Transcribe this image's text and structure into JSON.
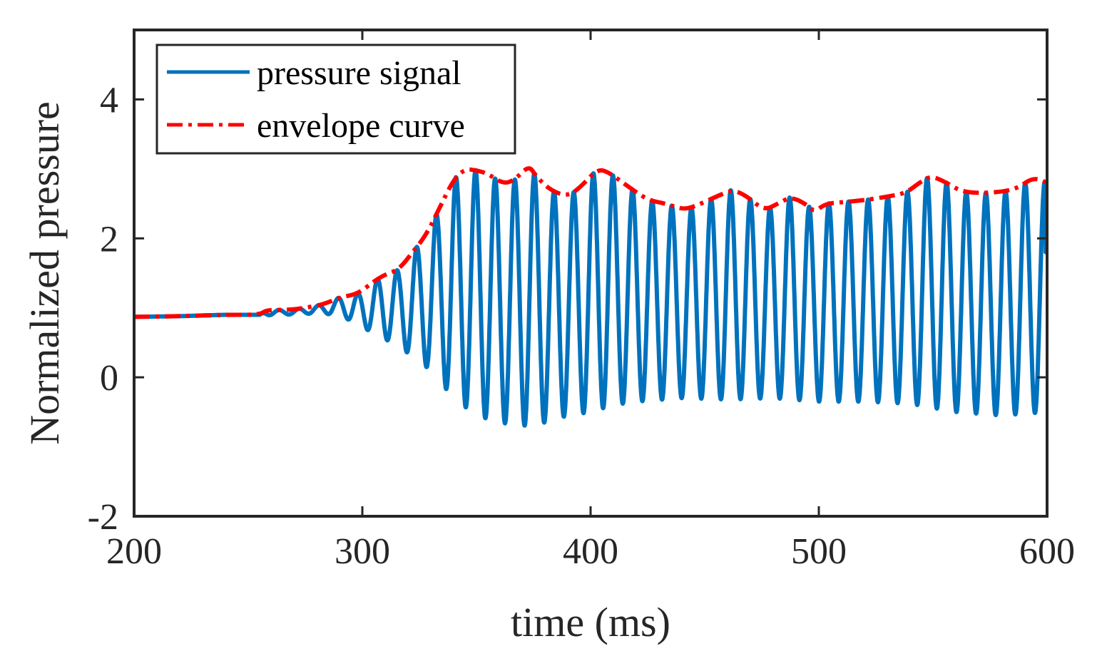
{
  "chart_data": {
    "type": "line",
    "title": "",
    "xlabel": "time (ms)",
    "ylabel": "Normalized pressure",
    "xlim": [
      200,
      600
    ],
    "ylim": [
      -2,
      5
    ],
    "xticks": [
      200,
      300,
      400,
      500,
      600
    ],
    "xtick_labels": [
      "200",
      "300",
      "400",
      "500",
      "600"
    ],
    "yticks": [
      -2,
      0,
      2,
      4
    ],
    "ytick_labels": [
      "-2",
      "0",
      "2",
      "4"
    ],
    "grid": false,
    "legend_position": "top-left",
    "colors": {
      "signal": "#0072BD",
      "envelope": "#FF0000",
      "axes": "#262626"
    },
    "series": [
      {
        "name": "pressure signal",
        "style": "solid",
        "baseline": [
          [
            200,
            0.87
          ],
          [
            255,
            0.89
          ],
          [
            265,
            0.9
          ],
          [
            280,
            0.92
          ],
          [
            290,
            0.9
          ],
          [
            300,
            0.72
          ],
          [
            310,
            0.55
          ],
          [
            320,
            0.35
          ],
          [
            330,
            0.1
          ],
          [
            340,
            -0.3
          ],
          [
            350,
            -0.55
          ],
          [
            360,
            -0.65
          ],
          [
            370,
            -0.7
          ],
          [
            380,
            -0.65
          ],
          [
            390,
            -0.55
          ],
          [
            400,
            -0.5
          ],
          [
            410,
            -0.4
          ],
          [
            420,
            -0.35
          ],
          [
            440,
            -0.3
          ],
          [
            460,
            -0.32
          ],
          [
            480,
            -0.3
          ],
          [
            500,
            -0.35
          ],
          [
            520,
            -0.35
          ],
          [
            540,
            -0.38
          ],
          [
            560,
            -0.5
          ],
          [
            580,
            -0.55
          ],
          [
            600,
            -0.5
          ]
        ],
        "period_ms": 8.6,
        "start_ms": 255,
        "end_value": 1.8
      },
      {
        "name": "envelope curve",
        "style": "dashdot",
        "points": [
          [
            200,
            0.87
          ],
          [
            220,
            0.88
          ],
          [
            240,
            0.9
          ],
          [
            255,
            0.9
          ],
          [
            258,
            0.97
          ],
          [
            268,
            0.97
          ],
          [
            275,
            1.0
          ],
          [
            283,
            1.05
          ],
          [
            290,
            1.15
          ],
          [
            298,
            1.2
          ],
          [
            305,
            1.38
          ],
          [
            310,
            1.48
          ],
          [
            316,
            1.55
          ],
          [
            322,
            1.8
          ],
          [
            328,
            2.05
          ],
          [
            334,
            2.45
          ],
          [
            340,
            2.85
          ],
          [
            345,
            3.0
          ],
          [
            350,
            2.98
          ],
          [
            355,
            2.93
          ],
          [
            362,
            2.78
          ],
          [
            367,
            2.85
          ],
          [
            373,
            3.05
          ],
          [
            376,
            2.9
          ],
          [
            382,
            2.7
          ],
          [
            390,
            2.6
          ],
          [
            396,
            2.75
          ],
          [
            403,
            3.0
          ],
          [
            408,
            2.95
          ],
          [
            415,
            2.78
          ],
          [
            425,
            2.55
          ],
          [
            433,
            2.5
          ],
          [
            440,
            2.42
          ],
          [
            445,
            2.45
          ],
          [
            455,
            2.6
          ],
          [
            462,
            2.7
          ],
          [
            468,
            2.62
          ],
          [
            476,
            2.4
          ],
          [
            482,
            2.5
          ],
          [
            488,
            2.6
          ],
          [
            495,
            2.48
          ],
          [
            498,
            2.38
          ],
          [
            503,
            2.5
          ],
          [
            510,
            2.52
          ],
          [
            520,
            2.55
          ],
          [
            530,
            2.6
          ],
          [
            538,
            2.65
          ],
          [
            544,
            2.8
          ],
          [
            549,
            2.9
          ],
          [
            555,
            2.82
          ],
          [
            562,
            2.68
          ],
          [
            570,
            2.65
          ],
          [
            580,
            2.67
          ],
          [
            587,
            2.72
          ],
          [
            594,
            2.88
          ],
          [
            600,
            2.8
          ]
        ]
      }
    ]
  }
}
